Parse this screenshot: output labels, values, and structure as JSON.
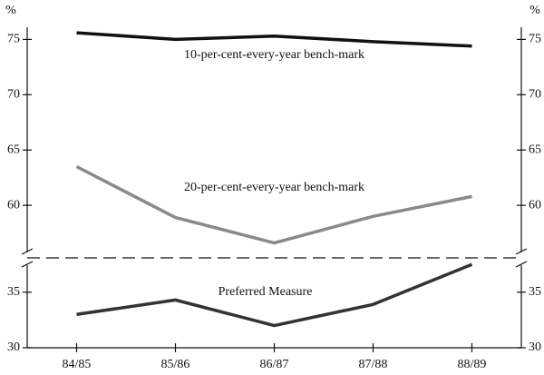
{
  "chart_data": {
    "type": "line",
    "y_unit": "%",
    "categories": [
      "84/85",
      "85/86",
      "86/87",
      "87/88",
      "88/89"
    ],
    "panels": [
      {
        "ylim": [
          55.25,
          76.1
        ],
        "yticks": [
          60,
          65,
          70,
          75
        ],
        "series": [
          {
            "name": "10-per-cent-every-year bench-mark",
            "color": "#111111",
            "values": [
              75.6,
              75.0,
              75.3,
              74.8,
              74.4
            ]
          },
          {
            "name": "20-per-cent-every-year bench-mark",
            "color": "#8a8a8a",
            "values": [
              63.5,
              58.9,
              56.6,
              59.0,
              60.8
            ]
          }
        ]
      },
      {
        "ylim": [
          30,
          37.6
        ],
        "yticks": [
          30,
          35
        ],
        "series": [
          {
            "name": "Preferred Measure",
            "color": "#333333",
            "values": [
              33.0,
              34.3,
              32.0,
              33.9,
              37.5
            ]
          }
        ]
      }
    ]
  }
}
